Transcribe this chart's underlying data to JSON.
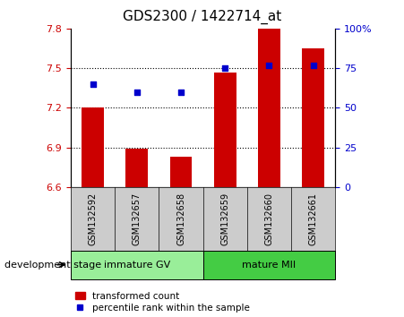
{
  "title": "GDS2300 / 1422714_at",
  "samples": [
    "GSM132592",
    "GSM132657",
    "GSM132658",
    "GSM132659",
    "GSM132660",
    "GSM132661"
  ],
  "bar_values": [
    7.2,
    6.89,
    6.83,
    7.47,
    7.8,
    7.65
  ],
  "bar_bottom": 6.6,
  "percentile_values": [
    65,
    60,
    60,
    75,
    77,
    77
  ],
  "ylim_left": [
    6.6,
    7.8
  ],
  "ylim_right": [
    0,
    100
  ],
  "yticks_left": [
    6.6,
    6.9,
    7.2,
    7.5,
    7.8
  ],
  "yticks_right": [
    0,
    25,
    50,
    75,
    100
  ],
  "ytick_labels_right": [
    "0",
    "25",
    "50",
    "75",
    "100%"
  ],
  "bar_color": "#cc0000",
  "dot_color": "#0000cc",
  "group1_label": "immature GV",
  "group2_label": "mature MII",
  "group1_color": "#99ee99",
  "group2_color": "#44cc44",
  "legend_bar_label": "transformed count",
  "legend_dot_label": "percentile rank within the sample",
  "xlabel_left": "development stage",
  "dotted_yticks": [
    6.9,
    7.2,
    7.5
  ],
  "background_color": "#ffffff",
  "sample_label_bg": "#cccccc"
}
